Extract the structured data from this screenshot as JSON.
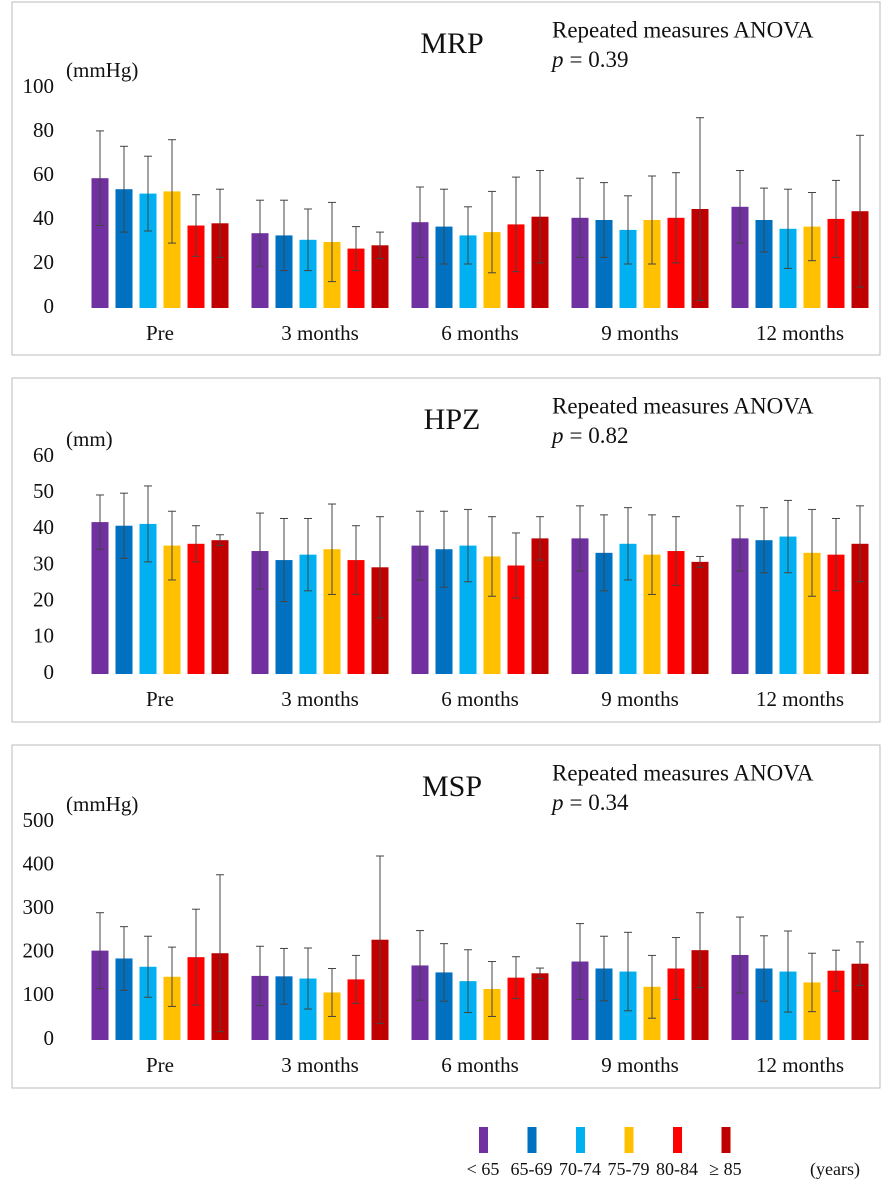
{
  "chart_data": [
    {
      "type": "bar",
      "title": "MRP",
      "y_label": "(mmHg)",
      "test_name": "Repeated measures ANOVA",
      "p_symbol": "p",
      "p_text": "= 0.39",
      "categories": [
        "Pre",
        "3 months",
        "6 months",
        "9 months",
        "12 months"
      ],
      "ylim": [
        0,
        100
      ],
      "yticks": [
        0,
        20,
        40,
        60,
        80,
        100
      ],
      "series": [
        {
          "values": [
            59,
            34,
            39,
            41,
            46
          ],
          "errors": [
            21.5,
            15,
            16,
            18,
            16.5
          ]
        },
        {
          "values": [
            54,
            33,
            37,
            40,
            40
          ],
          "errors": [
            19.5,
            16,
            17,
            17,
            14.5
          ]
        },
        {
          "values": [
            52,
            31,
            33,
            35.5,
            36
          ],
          "errors": [
            17,
            14,
            13,
            15.5,
            18
          ]
        },
        {
          "values": [
            53,
            30,
            34.5,
            40,
            37
          ],
          "errors": [
            23.5,
            18,
            18.5,
            20,
            15.5
          ]
        },
        {
          "values": [
            37.5,
            27,
            38,
            41,
            40.5
          ],
          "errors": [
            14,
            10,
            21.5,
            20.5,
            17.5
          ]
        },
        {
          "values": [
            38.5,
            28.5,
            41.5,
            45,
            44
          ],
          "errors": [
            15.5,
            6,
            21,
            41.5,
            34.5
          ]
        }
      ]
    },
    {
      "type": "bar",
      "title": "HPZ",
      "y_label": "(mm)",
      "test_name": "Repeated measures ANOVA",
      "p_symbol": "p",
      "p_text": "= 0.82",
      "categories": [
        "Pre",
        "3 months",
        "6 months",
        "9 months",
        "12 months"
      ],
      "ylim": [
        0,
        60
      ],
      "yticks": [
        0,
        10,
        20,
        30,
        40,
        50,
        60
      ],
      "series": [
        {
          "values": [
            42,
            34,
            35.5,
            37.5,
            37.5
          ],
          "errors": [
            7.5,
            10.5,
            9.5,
            9,
            9
          ]
        },
        {
          "values": [
            41,
            31.5,
            34.5,
            33.5,
            37
          ],
          "errors": [
            9,
            11.5,
            10.5,
            10.5,
            9
          ]
        },
        {
          "values": [
            41.5,
            33,
            35.5,
            36,
            38
          ],
          "errors": [
            10.5,
            10,
            10,
            10,
            10
          ]
        },
        {
          "values": [
            35.5,
            34.5,
            32.5,
            33,
            33.5
          ],
          "errors": [
            9.5,
            12.5,
            11,
            11,
            12
          ]
        },
        {
          "values": [
            36,
            31.5,
            30,
            34,
            33
          ],
          "errors": [
            5,
            9.5,
            9,
            9.5,
            10
          ]
        },
        {
          "values": [
            37,
            29.5,
            37.5,
            31,
            36
          ],
          "errors": [
            1.5,
            14,
            6,
            1.5,
            10.5
          ]
        }
      ]
    },
    {
      "type": "bar",
      "title": "MSP",
      "y_label": "(mmHg)",
      "test_name": "Repeated measures ANOVA",
      "p_symbol": "p",
      "p_text": "= 0.34",
      "categories": [
        "Pre",
        "3 months",
        "6 months",
        "9 months",
        "12 months"
      ],
      "ylim": [
        0,
        500
      ],
      "yticks": [
        0,
        100,
        200,
        300,
        400,
        500
      ],
      "series": [
        {
          "values": [
            205,
            147,
            171,
            180,
            195
          ],
          "errors": [
            87,
            68,
            80,
            87,
            87
          ]
        },
        {
          "values": [
            187,
            146,
            155,
            164,
            164
          ],
          "errors": [
            73,
            64,
            66,
            74,
            75
          ]
        },
        {
          "values": [
            168,
            141,
            135,
            157,
            157
          ],
          "errors": [
            70,
            70,
            72,
            90,
            93
          ]
        },
        {
          "values": [
            145,
            109,
            117,
            122,
            132
          ],
          "errors": [
            68,
            55,
            63,
            72,
            67
          ]
        },
        {
          "values": [
            190,
            139,
            143,
            164,
            159
          ],
          "errors": [
            110,
            55,
            48,
            71,
            47
          ]
        },
        {
          "values": [
            199,
            230,
            153,
            206,
            175
          ],
          "errors": [
            180,
            192,
            12,
            86,
            50
          ]
        }
      ]
    }
  ],
  "legend": {
    "items": [
      {
        "name": "< 65",
        "color": "#7030a0"
      },
      {
        "name": "65-69",
        "color": "#0070c0"
      },
      {
        "name": "70-74",
        "color": "#00b0f0"
      },
      {
        "name": "75-79",
        "color": "#ffc000"
      },
      {
        "name": "80-84",
        "color": "#ff0000"
      },
      {
        "name": "≥ 85",
        "color": "#c00000"
      }
    ],
    "unit": "(years)"
  }
}
